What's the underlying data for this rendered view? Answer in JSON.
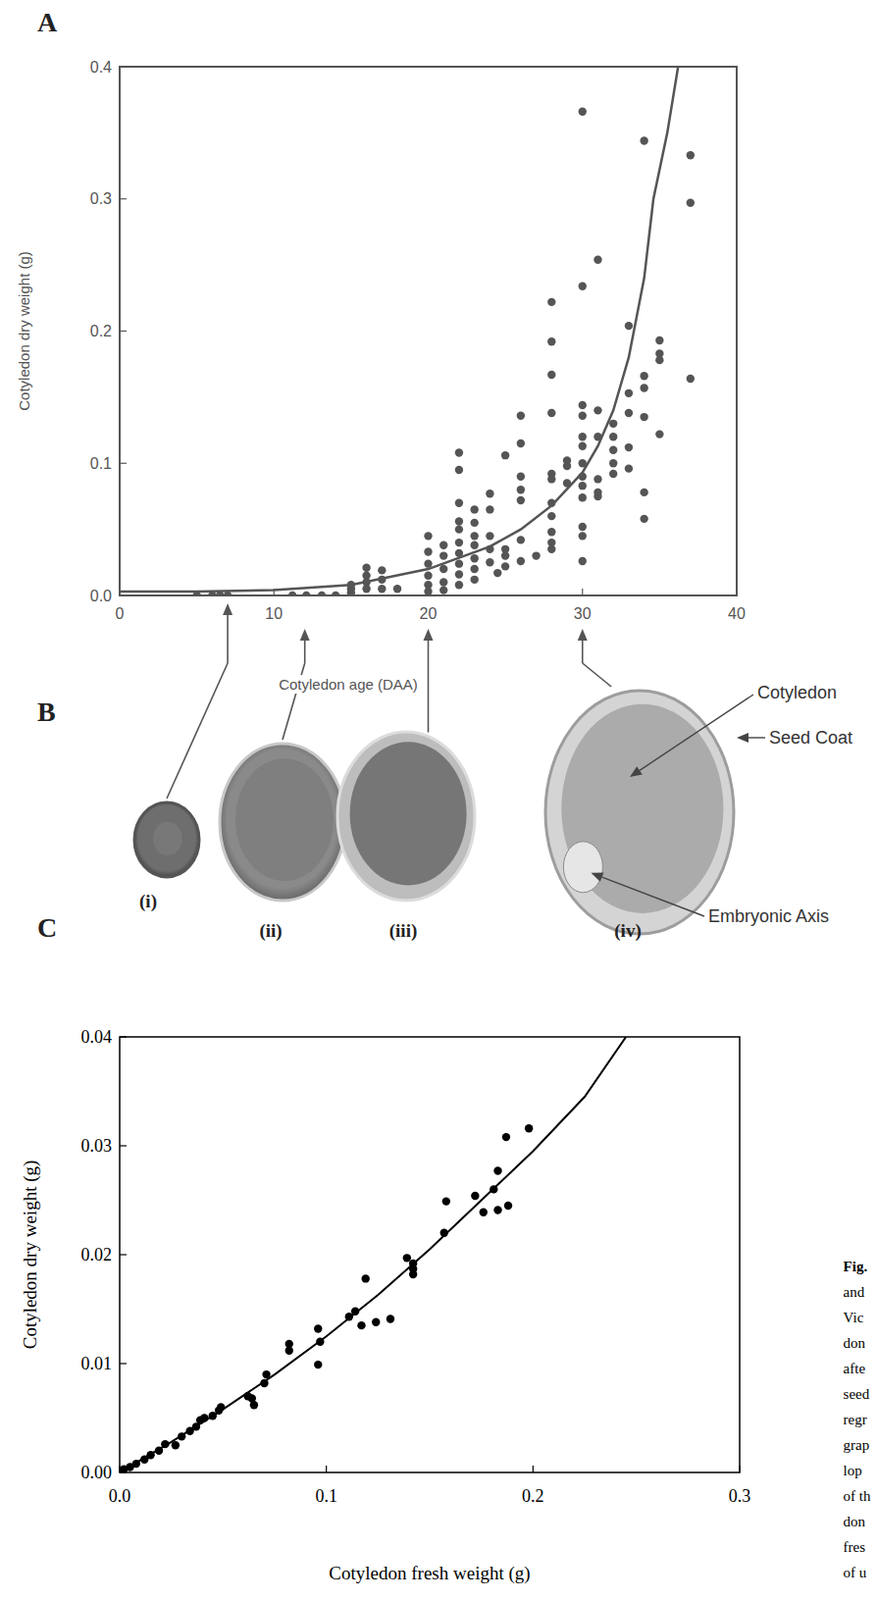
{
  "chart_data": [
    {
      "type": "scatter",
      "panel": "A",
      "x_label": "Cotyledon age (DAA)",
      "y_label": "Cotyledon dry weight (g)",
      "xlim": [
        0,
        40
      ],
      "ylim": [
        0,
        0.4
      ],
      "xticks": [
        0,
        10,
        20,
        30,
        40
      ],
      "yticks": [
        {
          "value": 0,
          "label": "0.0"
        },
        0.1,
        0.2,
        0.3,
        0.4
      ],
      "grid": false,
      "series": [
        {
          "type": "scatter",
          "marker": "circle",
          "color": "#555555",
          "x": [
            5,
            6,
            6.5,
            7,
            11.2,
            12.1,
            13.1,
            14,
            15,
            15,
            15,
            16,
            16,
            16,
            16,
            17,
            17,
            17,
            18,
            20,
            20,
            20,
            20,
            20,
            20,
            21,
            21,
            21,
            21,
            21,
            22,
            22,
            22,
            22,
            22,
            22,
            22,
            22,
            22,
            22,
            23,
            23,
            23,
            23,
            23,
            23,
            23,
            24,
            24,
            24,
            24,
            24,
            24.5,
            25,
            25,
            25,
            25,
            26,
            26,
            26,
            26,
            26,
            26,
            26,
            27,
            28,
            28,
            28,
            28,
            28,
            28,
            28,
            28,
            28,
            28,
            28,
            29,
            29,
            29,
            30,
            30,
            30,
            30,
            30,
            30,
            30,
            30,
            30,
            30,
            30,
            30,
            30,
            31,
            31,
            31,
            31,
            31,
            31,
            32,
            32,
            32,
            32,
            32,
            33,
            33,
            33,
            33,
            33,
            34,
            34,
            34,
            34,
            34,
            34,
            35,
            35,
            35,
            35,
            37,
            37,
            37
          ],
          "values": [
            0,
            0,
            0,
            0,
            0,
            0,
            0,
            0,
            0.002,
            0.005,
            0.008,
            0.021,
            0.015,
            0.01,
            0.005,
            0.019,
            0.012,
            0.005,
            0.005,
            0.045,
            0.033,
            0.024,
            0.015,
            0.008,
            0.003,
            0.038,
            0.03,
            0.02,
            0.01,
            0.004,
            0.108,
            0.095,
            0.07,
            0.056,
            0.05,
            0.04,
            0.032,
            0.024,
            0.016,
            0.008,
            0.065,
            0.055,
            0.045,
            0.038,
            0.028,
            0.02,
            0.012,
            0.077,
            0.065,
            0.045,
            0.035,
            0.025,
            0.017,
            0.106,
            0.035,
            0.03,
            0.022,
            0.136,
            0.115,
            0.09,
            0.08,
            0.072,
            0.042,
            0.026,
            0.03,
            0.222,
            0.192,
            0.167,
            0.138,
            0.092,
            0.088,
            0.07,
            0.06,
            0.048,
            0.04,
            0.035,
            0.102,
            0.098,
            0.085,
            0.366,
            0.234,
            0.144,
            0.136,
            0.12,
            0.113,
            0.1,
            0.09,
            0.083,
            0.074,
            0.052,
            0.045,
            0.026,
            0.254,
            0.14,
            0.12,
            0.088,
            0.078,
            0.075,
            0.13,
            0.12,
            0.11,
            0.1,
            0.092,
            0.204,
            0.153,
            0.138,
            0.112,
            0.096,
            0.344,
            0.166,
            0.157,
            0.135,
            0.078,
            0.058,
            0.193,
            0.183,
            0.178,
            0.122,
            0.333,
            0.297,
            0.164
          ]
        },
        {
          "type": "line",
          "line_style": "solid",
          "color": "#555555",
          "x": [
            0,
            5,
            10,
            15,
            20,
            24,
            26,
            28,
            30,
            31,
            32,
            33,
            34,
            34.6,
            35.5,
            36.2
          ],
          "values": [
            0.003,
            0.003,
            0.004,
            0.008,
            0.02,
            0.037,
            0.05,
            0.068,
            0.093,
            0.113,
            0.14,
            0.18,
            0.24,
            0.3,
            0.35,
            0.4
          ]
        }
      ]
    },
    {
      "type": "scatter",
      "panel": "C",
      "x_label": "Cotyledon fresh weight (g)",
      "y_label": "Cotyledon dry weight (g)",
      "xlim": [
        0,
        0.3
      ],
      "ylim": [
        0,
        0.04
      ],
      "xticks": [
        {
          "value": 0,
          "label": "0.0"
        },
        0.1,
        0.2,
        0.3
      ],
      "yticks": [
        {
          "value": 0,
          "label": "0.00"
        },
        0.01,
        0.02,
        0.03,
        0.04
      ],
      "grid": false,
      "series": [
        {
          "type": "scatter",
          "marker": "circle",
          "color": "#000000",
          "x": [
            0.002,
            0.005,
            0.008,
            0.012,
            0.015,
            0.019,
            0.022,
            0.027,
            0.03,
            0.034,
            0.037,
            0.039,
            0.041,
            0.045,
            0.048,
            0.049,
            0.062,
            0.064,
            0.065,
            0.07,
            0.071,
            0.082,
            0.082,
            0.096,
            0.096,
            0.097,
            0.111,
            0.114,
            0.117,
            0.119,
            0.124,
            0.131,
            0.139,
            0.142,
            0.142,
            0.142,
            0.157,
            0.158,
            0.172,
            0.176,
            0.181,
            0.183,
            0.183,
            0.187,
            0.188,
            0.198
          ],
          "values": [
            0.0003,
            0.0005,
            0.0008,
            0.0012,
            0.0016,
            0.002,
            0.0026,
            0.0025,
            0.0033,
            0.0038,
            0.0042,
            0.0048,
            0.005,
            0.0052,
            0.0057,
            0.006,
            0.007,
            0.0068,
            0.0062,
            0.0082,
            0.009,
            0.0112,
            0.0118,
            0.0099,
            0.0132,
            0.012,
            0.0143,
            0.0148,
            0.0135,
            0.0178,
            0.0138,
            0.0141,
            0.0197,
            0.0192,
            0.0187,
            0.0182,
            0.022,
            0.0249,
            0.0254,
            0.0239,
            0.026,
            0.0277,
            0.0241,
            0.0308,
            0.0245,
            0.0316
          ]
        },
        {
          "type": "line",
          "line_style": "solid",
          "color": "#000000",
          "x": [
            0,
            0.025,
            0.05,
            0.075,
            0.1,
            0.125,
            0.15,
            0.175,
            0.2,
            0.225,
            0.245
          ],
          "values": [
            0,
            0.0028,
            0.0058,
            0.009,
            0.0125,
            0.0163,
            0.0205,
            0.025,
            0.0295,
            0.0345,
            0.04
          ]
        }
      ]
    }
  ],
  "panel_b": {
    "letter": "B",
    "stages": [
      {
        "label": "(i)",
        "age": 7
      },
      {
        "label": "(ii)",
        "age": 12
      },
      {
        "label": "(iii)",
        "age": 20
      },
      {
        "label": "(iv)",
        "age": 30
      }
    ],
    "annotations": [
      "Cotyledon",
      "Seed Coat",
      "Embryonic Axis"
    ]
  },
  "caption": [
    "Fig.",
    "and",
    "Vic",
    "don",
    "afte",
    "seed",
    "regr",
    "grap",
    "lop",
    "of th",
    "don",
    "fres",
    "of u"
  ]
}
